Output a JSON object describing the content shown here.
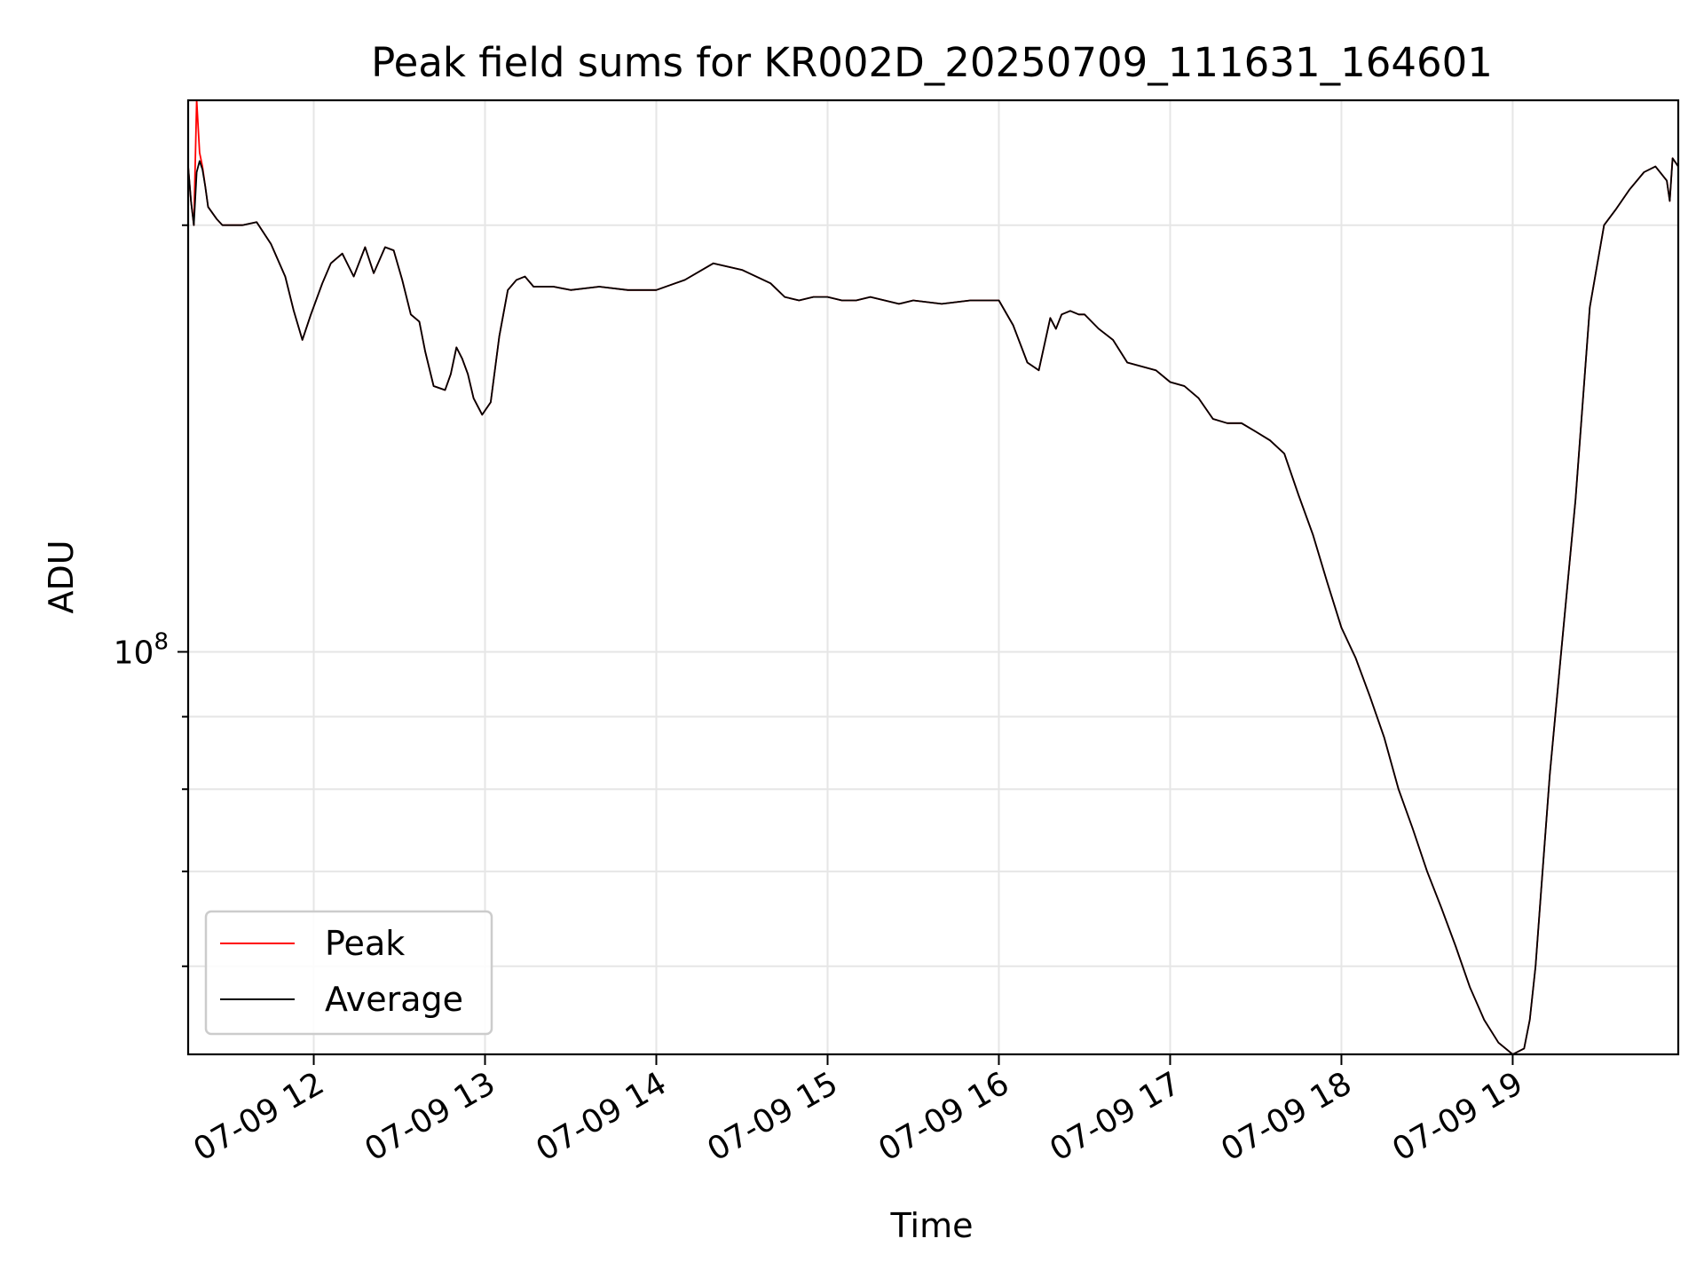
{
  "chart_data": {
    "type": "line",
    "title": "Peak field sums for KR002D_20250709_111631_164601",
    "xlabel": "Time",
    "ylabel": "ADU",
    "x_axis": {
      "type": "datetime",
      "range": [
        "2025-07-09 11:16",
        "2025-07-09 19:58"
      ],
      "ticks": [
        "07-09 12",
        "07-09 13",
        "07-09 14",
        "07-09 15",
        "07-09 16",
        "07-09 17",
        "07-09 18",
        "07-09 19"
      ],
      "tick_rotation_deg": 30
    },
    "y_axis": {
      "scale": "log",
      "range": [
        52000000,
        245000000
      ],
      "major_ticks": [
        {
          "value": 100000000,
          "label_base": "10",
          "label_exp": "8"
        }
      ],
      "minor_ticks": [
        60000000,
        70000000,
        80000000,
        90000000,
        200000000
      ]
    },
    "grid": true,
    "legend": {
      "position": "lower left"
    },
    "series": [
      {
        "name": "Peak",
        "color": "#ff0000",
        "x": [
          "2025-07-09 11:16",
          "2025-07-09 11:17",
          "2025-07-09 11:18",
          "2025-07-09 11:19",
          "2025-07-09 11:20",
          "2025-07-09 11:21",
          "2025-07-09 11:22",
          "2025-07-09 11:23",
          "2025-07-09 11:26",
          "2025-07-09 11:28",
          "2025-07-09 11:30",
          "2025-07-09 11:35",
          "2025-07-09 11:40",
          "2025-07-09 11:45",
          "2025-07-09 11:50",
          "2025-07-09 11:53",
          "2025-07-09 11:56",
          "2025-07-09 11:59",
          "2025-07-09 12:03",
          "2025-07-09 12:06",
          "2025-07-09 12:10",
          "2025-07-09 12:14",
          "2025-07-09 12:18",
          "2025-07-09 12:21",
          "2025-07-09 12:25",
          "2025-07-09 12:28",
          "2025-07-09 12:31",
          "2025-07-09 12:34",
          "2025-07-09 12:37",
          "2025-07-09 12:39",
          "2025-07-09 12:42",
          "2025-07-09 12:46",
          "2025-07-09 12:48",
          "2025-07-09 12:50",
          "2025-07-09 12:52",
          "2025-07-09 12:54",
          "2025-07-09 12:56",
          "2025-07-09 12:59",
          "2025-07-09 13:02",
          "2025-07-09 13:05",
          "2025-07-09 13:08",
          "2025-07-09 13:11",
          "2025-07-09 13:14",
          "2025-07-09 13:17",
          "2025-07-09 13:20",
          "2025-07-09 13:24",
          "2025-07-09 13:30",
          "2025-07-09 13:40",
          "2025-07-09 13:50",
          "2025-07-09 14:00",
          "2025-07-09 14:10",
          "2025-07-09 14:20",
          "2025-07-09 14:30",
          "2025-07-09 14:40",
          "2025-07-09 14:45",
          "2025-07-09 14:50",
          "2025-07-09 14:55",
          "2025-07-09 15:00",
          "2025-07-09 15:05",
          "2025-07-09 15:10",
          "2025-07-09 15:15",
          "2025-07-09 15:20",
          "2025-07-09 15:25",
          "2025-07-09 15:30",
          "2025-07-09 15:40",
          "2025-07-09 15:50",
          "2025-07-09 16:00",
          "2025-07-09 16:05",
          "2025-07-09 16:10",
          "2025-07-09 16:14",
          "2025-07-09 16:18",
          "2025-07-09 16:20",
          "2025-07-09 16:22",
          "2025-07-09 16:25",
          "2025-07-09 16:28",
          "2025-07-09 16:30",
          "2025-07-09 16:35",
          "2025-07-09 16:40",
          "2025-07-09 16:45",
          "2025-07-09 16:50",
          "2025-07-09 16:55",
          "2025-07-09 17:00",
          "2025-07-09 17:05",
          "2025-07-09 17:10",
          "2025-07-09 17:15",
          "2025-07-09 17:20",
          "2025-07-09 17:25",
          "2025-07-09 17:30",
          "2025-07-09 17:35",
          "2025-07-09 17:40",
          "2025-07-09 17:45",
          "2025-07-09 17:50",
          "2025-07-09 17:55",
          "2025-07-09 18:00",
          "2025-07-09 18:05",
          "2025-07-09 18:10",
          "2025-07-09 18:15",
          "2025-07-09 18:20",
          "2025-07-09 18:25",
          "2025-07-09 18:30",
          "2025-07-09 18:35",
          "2025-07-09 18:40",
          "2025-07-09 18:45",
          "2025-07-09 18:50",
          "2025-07-09 18:55",
          "2025-07-09 19:00",
          "2025-07-09 19:04",
          "2025-07-09 19:06",
          "2025-07-09 19:08",
          "2025-07-09 19:10",
          "2025-07-09 19:13",
          "2025-07-09 19:17",
          "2025-07-09 19:22",
          "2025-07-09 19:27",
          "2025-07-09 19:32",
          "2025-07-09 19:36",
          "2025-07-09 19:41",
          "2025-07-09 19:46",
          "2025-07-09 19:50",
          "2025-07-09 19:54",
          "2025-07-09 19:55",
          "2025-07-09 19:56",
          "2025-07-09 19:58"
        ],
        "y": [
          220000000,
          208000000,
          200000000,
          245000000,
          225000000,
          220000000,
          213000000,
          206000000,
          202000000,
          200000000,
          200000000,
          200000000,
          201000000,
          194000000,
          184000000,
          174000000,
          166000000,
          173000000,
          182000000,
          188000000,
          191000000,
          184000000,
          193000000,
          185000000,
          193000000,
          192000000,
          183000000,
          173000000,
          171000000,
          163000000,
          154000000,
          153000000,
          157000000,
          164000000,
          161000000,
          157000000,
          151000000,
          147000000,
          150000000,
          167000000,
          180000000,
          183000000,
          184000000,
          181000000,
          181000000,
          181000000,
          180000000,
          181000000,
          180000000,
          180000000,
          183000000,
          188000000,
          186000000,
          182000000,
          178000000,
          177000000,
          178000000,
          178000000,
          177000000,
          177000000,
          178000000,
          177000000,
          176000000,
          177000000,
          176000000,
          177000000,
          177000000,
          170000000,
          160000000,
          158000000,
          172000000,
          169000000,
          173000000,
          174000000,
          173000000,
          173000000,
          169000000,
          166000000,
          160000000,
          159000000,
          158000000,
          155000000,
          154000000,
          151000000,
          146000000,
          145000000,
          145000000,
          143000000,
          141000000,
          138000000,
          129000000,
          121000000,
          112000000,
          104000000,
          99000000,
          93000000,
          87000000,
          80000000,
          75000000,
          70000000,
          66000000,
          62000000,
          58000000,
          55000000,
          53000000,
          52000000,
          52500000,
          55000000,
          60000000,
          68000000,
          82000000,
          100000000,
          128000000,
          175000000,
          200000000,
          205000000,
          212000000,
          218000000,
          220000000,
          215000000,
          208000000,
          223000000,
          220000000
        ],
        "visible_on_top": false
      },
      {
        "name": "Average",
        "color": "#000000",
        "x": [
          "2025-07-09 11:16",
          "2025-07-09 11:17",
          "2025-07-09 11:18",
          "2025-07-09 11:19",
          "2025-07-09 11:20",
          "2025-07-09 11:21",
          "2025-07-09 11:22",
          "2025-07-09 11:23",
          "2025-07-09 11:26",
          "2025-07-09 11:28",
          "2025-07-09 11:30",
          "2025-07-09 11:35",
          "2025-07-09 11:40",
          "2025-07-09 11:45",
          "2025-07-09 11:50",
          "2025-07-09 11:53",
          "2025-07-09 11:56",
          "2025-07-09 11:59",
          "2025-07-09 12:03",
          "2025-07-09 12:06",
          "2025-07-09 12:10",
          "2025-07-09 12:14",
          "2025-07-09 12:18",
          "2025-07-09 12:21",
          "2025-07-09 12:25",
          "2025-07-09 12:28",
          "2025-07-09 12:31",
          "2025-07-09 12:34",
          "2025-07-09 12:37",
          "2025-07-09 12:39",
          "2025-07-09 12:42",
          "2025-07-09 12:46",
          "2025-07-09 12:48",
          "2025-07-09 12:50",
          "2025-07-09 12:52",
          "2025-07-09 12:54",
          "2025-07-09 12:56",
          "2025-07-09 12:59",
          "2025-07-09 13:02",
          "2025-07-09 13:05",
          "2025-07-09 13:08",
          "2025-07-09 13:11",
          "2025-07-09 13:14",
          "2025-07-09 13:17",
          "2025-07-09 13:20",
          "2025-07-09 13:24",
          "2025-07-09 13:30",
          "2025-07-09 13:40",
          "2025-07-09 13:50",
          "2025-07-09 14:00",
          "2025-07-09 14:10",
          "2025-07-09 14:20",
          "2025-07-09 14:30",
          "2025-07-09 14:40",
          "2025-07-09 14:45",
          "2025-07-09 14:50",
          "2025-07-09 14:55",
          "2025-07-09 15:00",
          "2025-07-09 15:05",
          "2025-07-09 15:10",
          "2025-07-09 15:15",
          "2025-07-09 15:20",
          "2025-07-09 15:25",
          "2025-07-09 15:30",
          "2025-07-09 15:40",
          "2025-07-09 15:50",
          "2025-07-09 16:00",
          "2025-07-09 16:05",
          "2025-07-09 16:10",
          "2025-07-09 16:14",
          "2025-07-09 16:18",
          "2025-07-09 16:20",
          "2025-07-09 16:22",
          "2025-07-09 16:25",
          "2025-07-09 16:28",
          "2025-07-09 16:30",
          "2025-07-09 16:35",
          "2025-07-09 16:40",
          "2025-07-09 16:45",
          "2025-07-09 16:50",
          "2025-07-09 16:55",
          "2025-07-09 17:00",
          "2025-07-09 17:05",
          "2025-07-09 17:10",
          "2025-07-09 17:15",
          "2025-07-09 17:20",
          "2025-07-09 17:25",
          "2025-07-09 17:30",
          "2025-07-09 17:35",
          "2025-07-09 17:40",
          "2025-07-09 17:45",
          "2025-07-09 17:50",
          "2025-07-09 17:55",
          "2025-07-09 18:00",
          "2025-07-09 18:05",
          "2025-07-09 18:10",
          "2025-07-09 18:15",
          "2025-07-09 18:20",
          "2025-07-09 18:25",
          "2025-07-09 18:30",
          "2025-07-09 18:35",
          "2025-07-09 18:40",
          "2025-07-09 18:45",
          "2025-07-09 18:50",
          "2025-07-09 18:55",
          "2025-07-09 19:00",
          "2025-07-09 19:04",
          "2025-07-09 19:06",
          "2025-07-09 19:08",
          "2025-07-09 19:10",
          "2025-07-09 19:13",
          "2025-07-09 19:17",
          "2025-07-09 19:22",
          "2025-07-09 19:27",
          "2025-07-09 19:32",
          "2025-07-09 19:36",
          "2025-07-09 19:41",
          "2025-07-09 19:46",
          "2025-07-09 19:50",
          "2025-07-09 19:54",
          "2025-07-09 19:55",
          "2025-07-09 19:56",
          "2025-07-09 19:58"
        ],
        "y": [
          220000000,
          208000000,
          200000000,
          218000000,
          222000000,
          219000000,
          213000000,
          206000000,
          202000000,
          200000000,
          200000000,
          200000000,
          201000000,
          194000000,
          184000000,
          174000000,
          166000000,
          173000000,
          182000000,
          188000000,
          191000000,
          184000000,
          193000000,
          185000000,
          193000000,
          192000000,
          183000000,
          173000000,
          171000000,
          163000000,
          154000000,
          153000000,
          157000000,
          164000000,
          161000000,
          157000000,
          151000000,
          147000000,
          150000000,
          167000000,
          180000000,
          183000000,
          184000000,
          181000000,
          181000000,
          181000000,
          180000000,
          181000000,
          180000000,
          180000000,
          183000000,
          188000000,
          186000000,
          182000000,
          178000000,
          177000000,
          178000000,
          178000000,
          177000000,
          177000000,
          178000000,
          177000000,
          176000000,
          177000000,
          176000000,
          177000000,
          177000000,
          170000000,
          160000000,
          158000000,
          172000000,
          169000000,
          173000000,
          174000000,
          173000000,
          173000000,
          169000000,
          166000000,
          160000000,
          159000000,
          158000000,
          155000000,
          154000000,
          151000000,
          146000000,
          145000000,
          145000000,
          143000000,
          141000000,
          138000000,
          129000000,
          121000000,
          112000000,
          104000000,
          99000000,
          93000000,
          87000000,
          80000000,
          75000000,
          70000000,
          66000000,
          62000000,
          58000000,
          55000000,
          53000000,
          52000000,
          52500000,
          55000000,
          60000000,
          68000000,
          82000000,
          100000000,
          128000000,
          175000000,
          200000000,
          205000000,
          212000000,
          218000000,
          220000000,
          215000000,
          208000000,
          223000000,
          220000000
        ]
      }
    ]
  }
}
